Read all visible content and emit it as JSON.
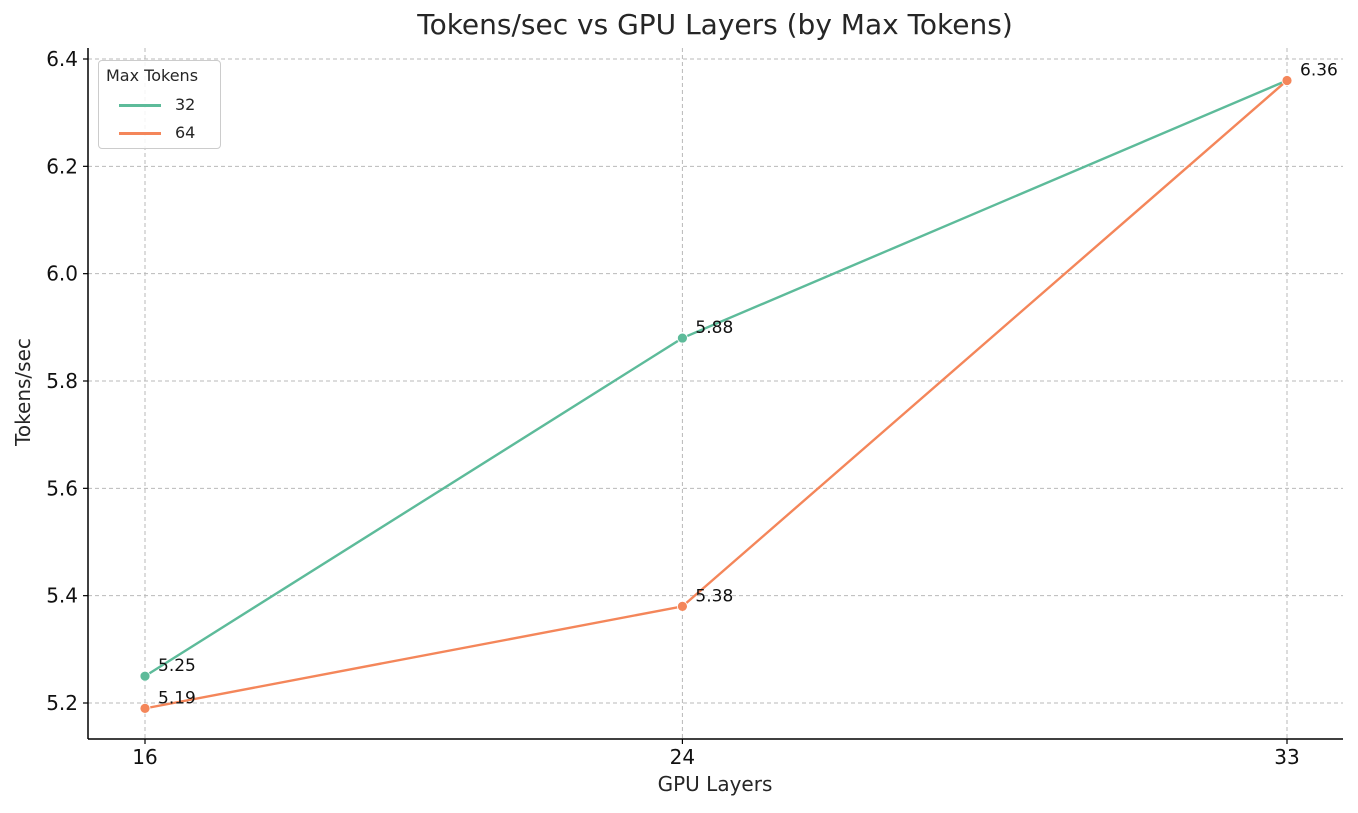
{
  "chart_data": {
    "type": "line",
    "title": "Tokens/sec vs GPU Layers (by Max Tokens)",
    "xlabel": "GPU Layers",
    "ylabel": "Tokens/sec",
    "x": [
      16,
      24,
      33
    ],
    "x_ticks": [
      "16",
      "24",
      "33"
    ],
    "y_ticks": [
      "5.2",
      "5.4",
      "5.6",
      "5.8",
      "6.0",
      "6.2",
      "6.4"
    ],
    "ylim": [
      5.13,
      6.42
    ],
    "xlim": [
      15.15,
      33.85
    ],
    "grid": true,
    "legend_title": "Max Tokens",
    "legend_position": "upper left",
    "series": [
      {
        "name": "32",
        "color": "#5dbb9a",
        "values": [
          5.25,
          5.88,
          6.36
        ],
        "labels": [
          "5.25",
          "5.88",
          "6.36"
        ]
      },
      {
        "name": "64",
        "color": "#f4865a",
        "values": [
          5.19,
          5.38,
          6.36
        ],
        "labels": [
          "5.19",
          "5.38",
          "6.36"
        ]
      }
    ]
  }
}
